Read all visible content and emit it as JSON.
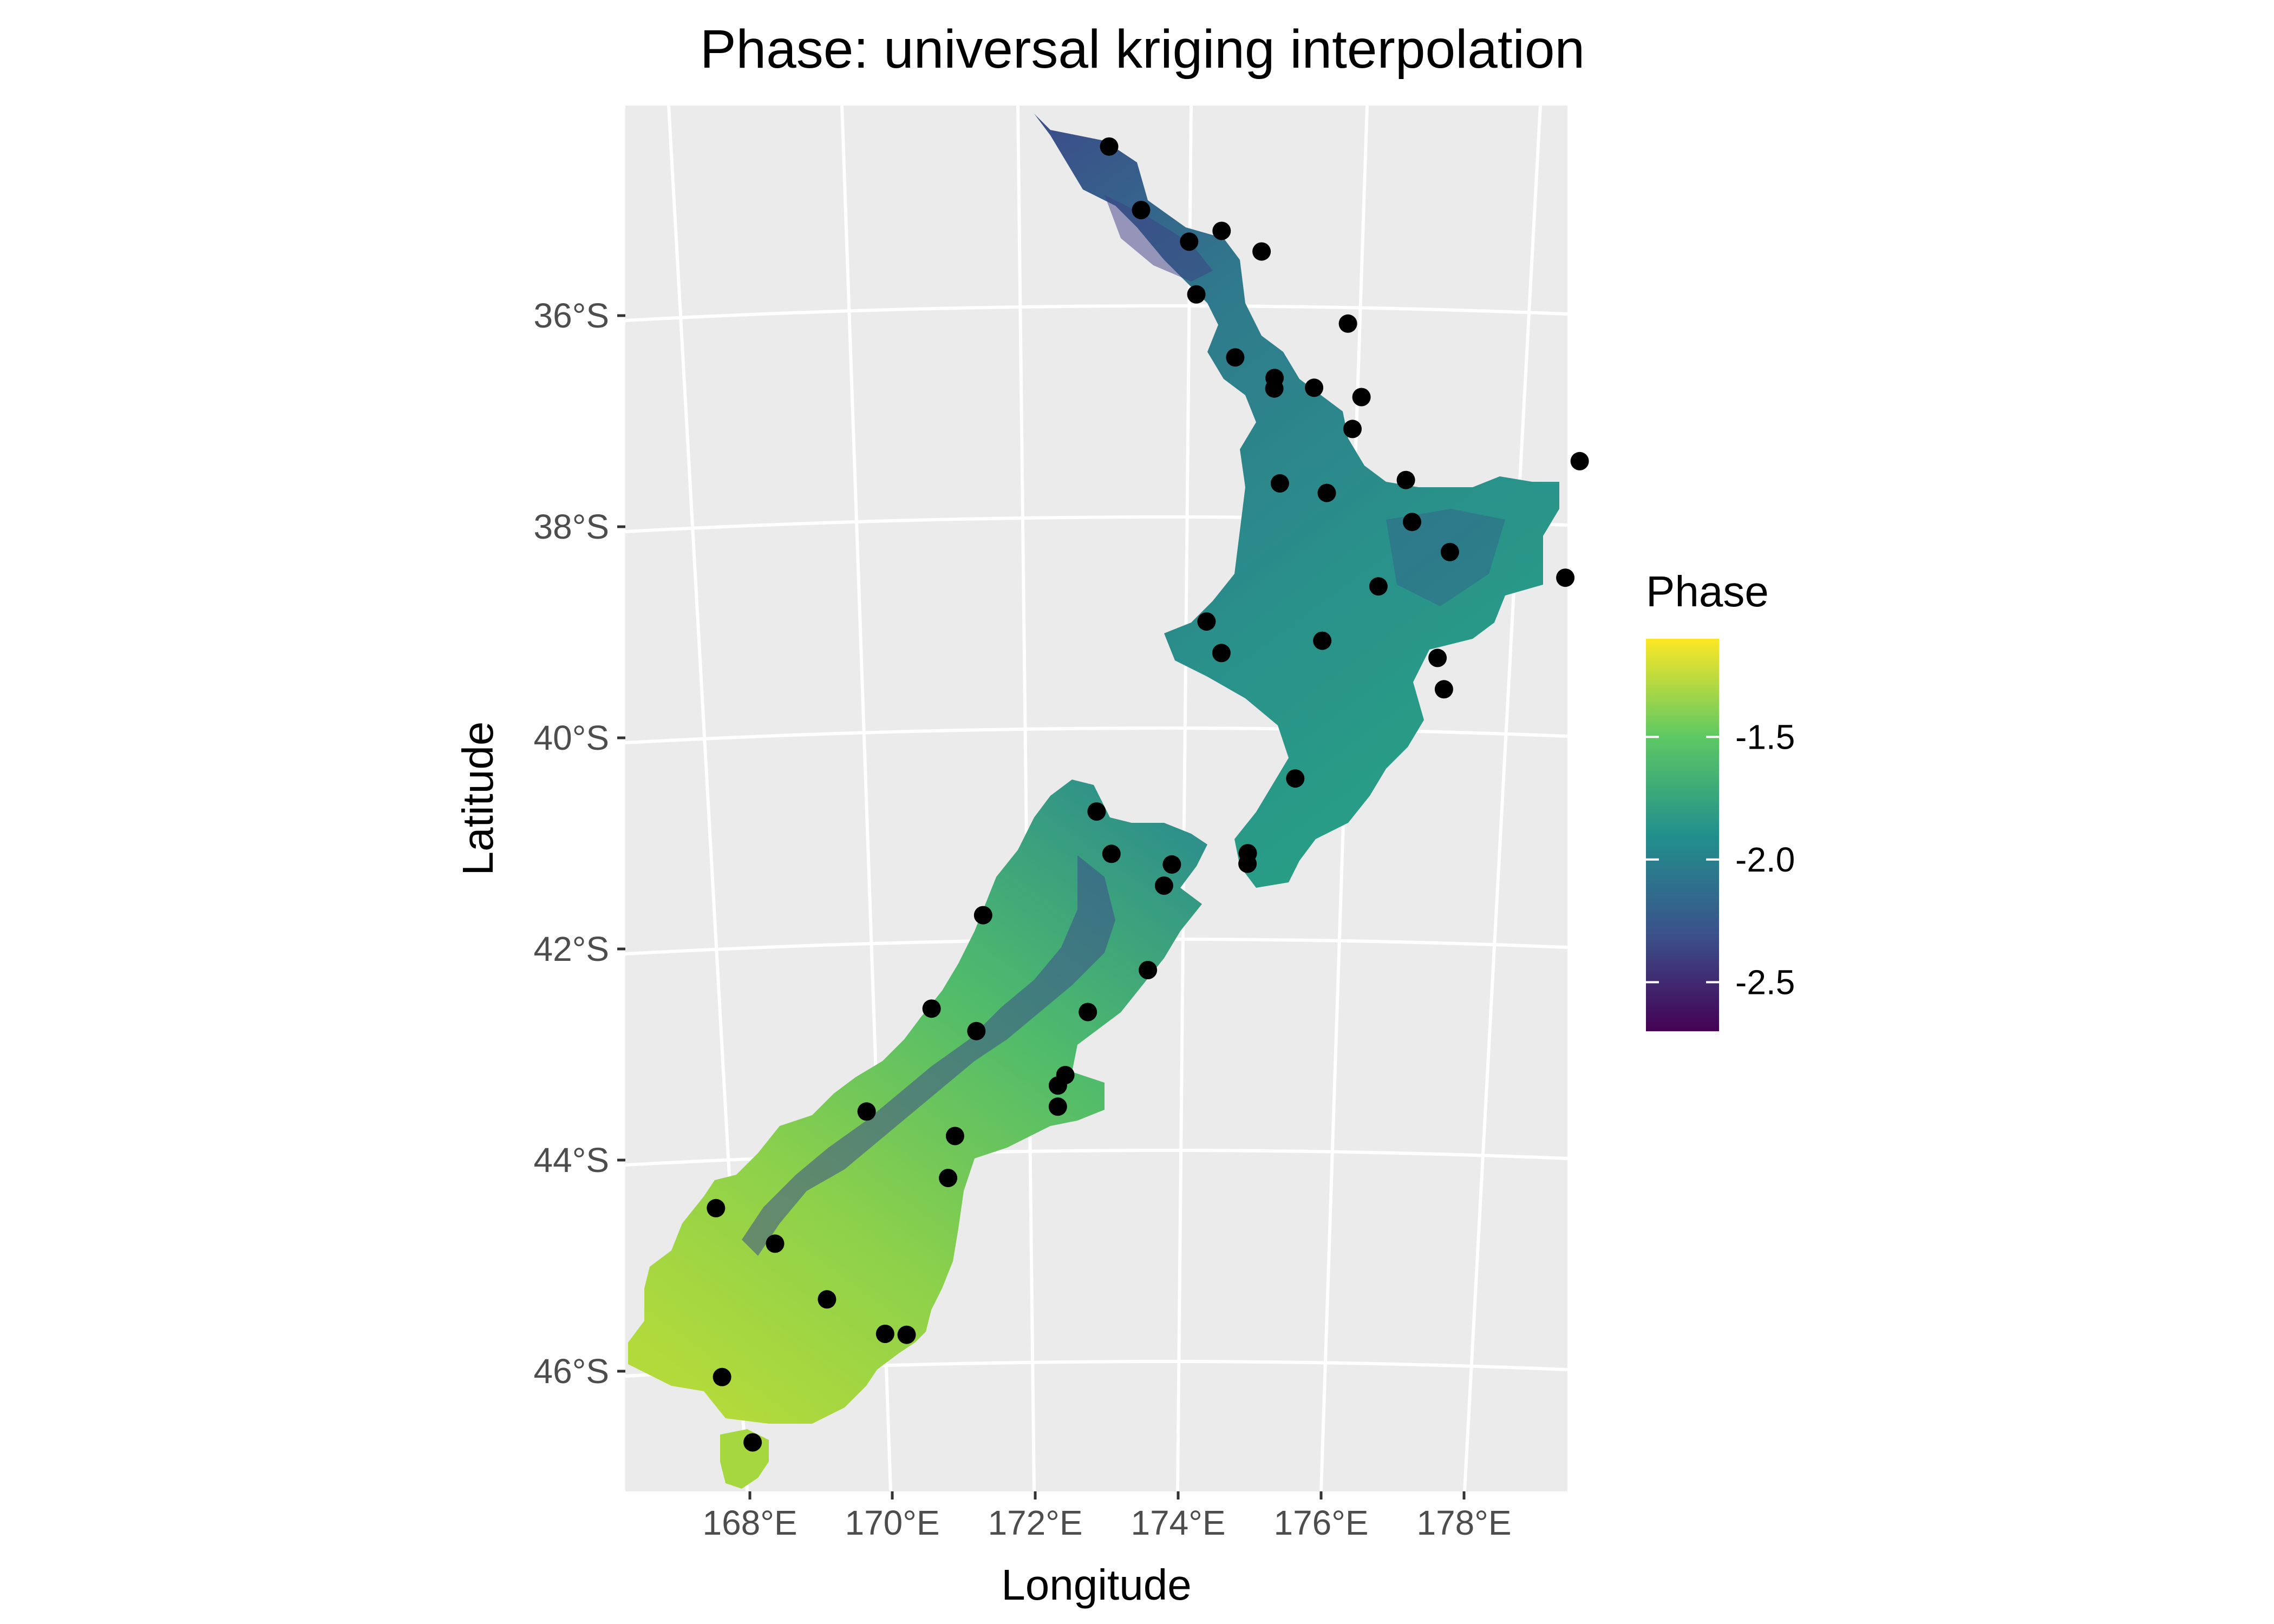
{
  "title": "Phase: universal kriging interpolation",
  "x_axis_label": "Longitude",
  "y_axis_label": "Latitude",
  "legend": {
    "title": "Phase",
    "ticks": [
      {
        "value": -1.5,
        "label": "-1.5"
      },
      {
        "value": -2.0,
        "label": "-2.0"
      },
      {
        "value": -2.5,
        "label": "-2.5"
      }
    ],
    "range": [
      -2.7,
      -1.1
    ],
    "colormap": "viridis",
    "colors": [
      "#440154",
      "#3b528b",
      "#21908c",
      "#5dc863",
      "#fde725"
    ]
  },
  "colors": {
    "panel_background": "#ebebeb",
    "grid_lines": "#ffffff",
    "station_points": "#000000"
  },
  "x_ticks": [
    "168°E",
    "170°E",
    "172°E",
    "174°E",
    "176°E",
    "178°E"
  ],
  "y_ticks": [
    "36°S",
    "38°S",
    "40°S",
    "42°S",
    "44°S",
    "46°S"
  ],
  "stations": [
    {
      "lon": 172.9,
      "lat": -34.4
    },
    {
      "lon": 173.3,
      "lat": -35.0
    },
    {
      "lon": 173.9,
      "lat": -35.3
    },
    {
      "lon": 174.3,
      "lat": -35.2
    },
    {
      "lon": 174.8,
      "lat": -35.4
    },
    {
      "lon": 174.0,
      "lat": -35.8
    },
    {
      "lon": 175.9,
      "lat": -36.1
    },
    {
      "lon": 174.5,
      "lat": -36.4
    },
    {
      "lon": 175.0,
      "lat": -36.6
    },
    {
      "lon": 175.0,
      "lat": -36.7
    },
    {
      "lon": 175.5,
      "lat": -36.7
    },
    {
      "lon": 176.1,
      "lat": -36.8
    },
    {
      "lon": 176.0,
      "lat": -37.1
    },
    {
      "lon": 175.1,
      "lat": -37.6
    },
    {
      "lon": 175.7,
      "lat": -37.7
    },
    {
      "lon": 176.7,
      "lat": -37.6
    },
    {
      "lon": 176.8,
      "lat": -38.0
    },
    {
      "lon": 177.3,
      "lat": -38.3
    },
    {
      "lon": 178.9,
      "lat": -37.5
    },
    {
      "lon": 178.8,
      "lat": -38.6
    },
    {
      "lon": 176.4,
      "lat": -38.6
    },
    {
      "lon": 174.2,
      "lat": -38.9
    },
    {
      "lon": 174.4,
      "lat": -39.2
    },
    {
      "lon": 175.7,
      "lat": -39.1
    },
    {
      "lon": 177.2,
      "lat": -39.3
    },
    {
      "lon": 177.3,
      "lat": -39.6
    },
    {
      "lon": 175.4,
      "lat": -40.4
    },
    {
      "lon": 174.8,
      "lat": -41.1
    },
    {
      "lon": 174.8,
      "lat": -41.2
    },
    {
      "lon": 172.8,
      "lat": -40.7
    },
    {
      "lon": 173.0,
      "lat": -41.1
    },
    {
      "lon": 173.8,
      "lat": -41.2
    },
    {
      "lon": 173.7,
      "lat": -41.4
    },
    {
      "lon": 171.3,
      "lat": -41.7
    },
    {
      "lon": 173.5,
      "lat": -42.2
    },
    {
      "lon": 172.7,
      "lat": -42.6
    },
    {
      "lon": 170.6,
      "lat": -42.6
    },
    {
      "lon": 171.2,
      "lat": -42.8
    },
    {
      "lon": 172.4,
      "lat": -43.2
    },
    {
      "lon": 172.3,
      "lat": -43.3
    },
    {
      "lon": 172.3,
      "lat": -43.5
    },
    {
      "lon": 169.7,
      "lat": -43.6
    },
    {
      "lon": 170.9,
      "lat": -43.8
    },
    {
      "lon": 170.8,
      "lat": -44.2
    },
    {
      "lon": 167.6,
      "lat": -44.6
    },
    {
      "lon": 168.4,
      "lat": -44.9
    },
    {
      "lon": 169.1,
      "lat": -45.4
    },
    {
      "lon": 169.9,
      "lat": -45.7
    },
    {
      "lon": 170.2,
      "lat": -45.7
    },
    {
      "lon": 167.6,
      "lat": -46.2
    },
    {
      "lon": 168.0,
      "lat": -46.8
    }
  ]
}
